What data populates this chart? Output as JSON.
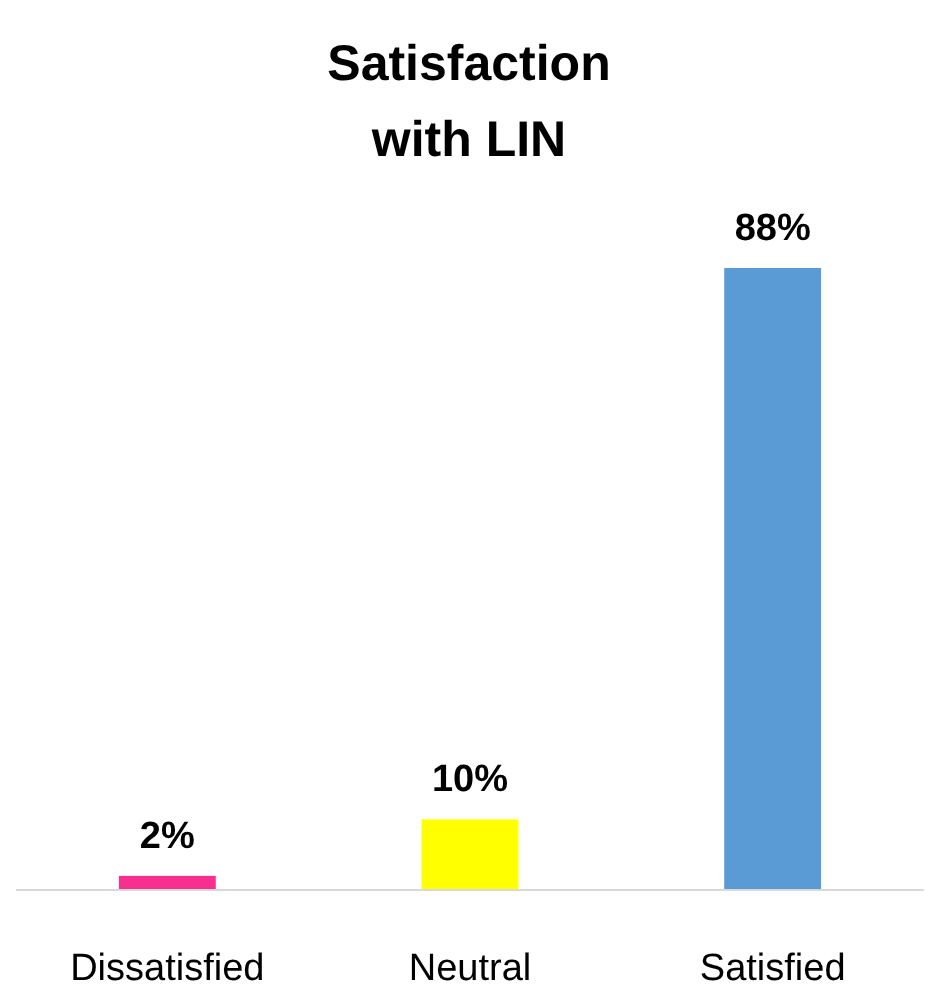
{
  "chart_data": {
    "type": "bar",
    "title": "Satisfaction with LIN",
    "categories": [
      "Dissatisfied",
      "Neutral",
      "Satisfied"
    ],
    "values": [
      2,
      10,
      88
    ],
    "colors": [
      "#f7308f",
      "#ffff00",
      "#5b9bd5"
    ],
    "value_labels": [
      "2%",
      "10%",
      "88%"
    ]
  }
}
